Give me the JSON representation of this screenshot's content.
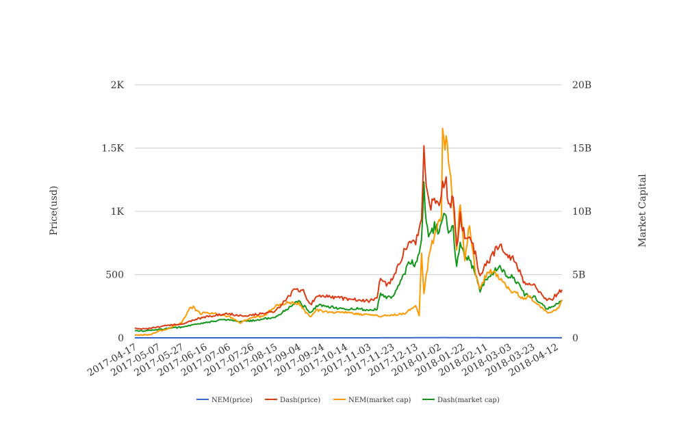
{
  "chart_data": {
    "type": "line",
    "y_left_label": "Price(usd)",
    "y_right_label": "Market Capital",
    "y_left_ticks": [
      "0",
      "500",
      "1K",
      "1.5K",
      "2K"
    ],
    "y_left_range": [
      0,
      2000
    ],
    "y_right_ticks": [
      "0",
      "5B",
      "10B",
      "15B",
      "20B"
    ],
    "y_right_range": [
      0,
      20000000000
    ],
    "x_range": [
      "2017-04-17",
      "2018-04-17"
    ],
    "x_tick_labels": [
      "2017-04-17",
      "2017-05-07",
      "2017-05-27",
      "2017-06-16",
      "2017-07-06",
      "2017-07-26",
      "2017-08-15",
      "2017-09-04",
      "2017-09-24",
      "2017-10-14",
      "2017-11-03",
      "2017-11-23",
      "2017-12-13",
      "2018-01-02",
      "2018-01-22",
      "2018-02-11",
      "2018-03-03",
      "2018-03-23",
      "2018-04-12"
    ],
    "grid": true,
    "legend_position": "bottom",
    "series": [
      {
        "name": "NEM(price)",
        "axis": "left",
        "color": "#3366cc",
        "points": [
          [
            "2017-04-17",
            0.02
          ],
          [
            "2017-06-01",
            0.2
          ],
          [
            "2017-08-01",
            0.2
          ],
          [
            "2017-10-01",
            0.2
          ],
          [
            "2017-12-01",
            0.3
          ],
          [
            "2018-01-05",
            2
          ],
          [
            "2018-01-20",
            1.5
          ],
          [
            "2018-02-15",
            0.5
          ],
          [
            "2018-04-17",
            0.3
          ]
        ]
      },
      {
        "name": "Dash(price)",
        "axis": "left",
        "color": "#dc3912",
        "points": [
          [
            "2017-04-17",
            75
          ],
          [
            "2017-04-27",
            72
          ],
          [
            "2017-05-07",
            85
          ],
          [
            "2017-05-17",
            100
          ],
          [
            "2017-05-27",
            110
          ],
          [
            "2017-06-06",
            140
          ],
          [
            "2017-06-16",
            165
          ],
          [
            "2017-06-26",
            180
          ],
          [
            "2017-07-06",
            190
          ],
          [
            "2017-07-16",
            175
          ],
          [
            "2017-07-26",
            180
          ],
          [
            "2017-08-05",
            195
          ],
          [
            "2017-08-15",
            210
          ],
          [
            "2017-08-25",
            310
          ],
          [
            "2017-09-01",
            390
          ],
          [
            "2017-09-08",
            370
          ],
          [
            "2017-09-14",
            260
          ],
          [
            "2017-09-19",
            320
          ],
          [
            "2017-09-24",
            340
          ],
          [
            "2017-10-04",
            320
          ],
          [
            "2017-10-14",
            310
          ],
          [
            "2017-10-24",
            300
          ],
          [
            "2017-11-03",
            290
          ],
          [
            "2017-11-10",
            310
          ],
          [
            "2017-11-13",
            480
          ],
          [
            "2017-11-18",
            420
          ],
          [
            "2017-11-23",
            460
          ],
          [
            "2017-11-28",
            560
          ],
          [
            "2017-12-03",
            680
          ],
          [
            "2017-12-08",
            790
          ],
          [
            "2017-12-13",
            760
          ],
          [
            "2017-12-18",
            960
          ],
          [
            "2017-12-20",
            1540
          ],
          [
            "2017-12-22",
            1150
          ],
          [
            "2017-12-25",
            1020
          ],
          [
            "2017-12-29",
            1120
          ],
          [
            "2018-01-02",
            1080
          ],
          [
            "2018-01-05",
            1200
          ],
          [
            "2018-01-08",
            1270
          ],
          [
            "2018-01-10",
            1040
          ],
          [
            "2018-01-14",
            1100
          ],
          [
            "2018-01-17",
            700
          ],
          [
            "2018-01-20",
            960
          ],
          [
            "2018-01-24",
            810
          ],
          [
            "2018-01-28",
            800
          ],
          [
            "2018-02-02",
            660
          ],
          [
            "2018-02-06",
            480
          ],
          [
            "2018-02-10",
            590
          ],
          [
            "2018-02-14",
            620
          ],
          [
            "2018-02-19",
            690
          ],
          [
            "2018-02-24",
            720
          ],
          [
            "2018-03-01",
            640
          ],
          [
            "2018-03-06",
            630
          ],
          [
            "2018-03-11",
            540
          ],
          [
            "2018-03-16",
            430
          ],
          [
            "2018-03-20",
            420
          ],
          [
            "2018-03-25",
            410
          ],
          [
            "2018-03-30",
            350
          ],
          [
            "2018-04-04",
            300
          ],
          [
            "2018-04-09",
            310
          ],
          [
            "2018-04-14",
            360
          ],
          [
            "2018-04-17",
            380
          ]
        ]
      },
      {
        "name": "NEM(market cap)",
        "axis": "right",
        "color": "#ff9900",
        "points": [
          [
            "2017-04-17",
            200000000
          ],
          [
            "2017-04-30",
            250000000
          ],
          [
            "2017-05-07",
            500000000
          ],
          [
            "2017-05-17",
            800000000
          ],
          [
            "2017-05-22",
            1000000000
          ],
          [
            "2017-05-27",
            1200000000
          ],
          [
            "2017-06-03",
            2300000000
          ],
          [
            "2017-06-06",
            2400000000
          ],
          [
            "2017-06-12",
            1900000000
          ],
          [
            "2017-06-16",
            2000000000
          ],
          [
            "2017-06-26",
            1900000000
          ],
          [
            "2017-07-06",
            1700000000
          ],
          [
            "2017-07-16",
            1200000000
          ],
          [
            "2017-07-26",
            1600000000
          ],
          [
            "2017-08-05",
            1700000000
          ],
          [
            "2017-08-15",
            2500000000
          ],
          [
            "2017-08-25",
            2800000000
          ],
          [
            "2017-09-04",
            2700000000
          ],
          [
            "2017-09-14",
            1600000000
          ],
          [
            "2017-09-19",
            2200000000
          ],
          [
            "2017-09-24",
            2100000000
          ],
          [
            "2017-10-04",
            2000000000
          ],
          [
            "2017-10-14",
            2000000000
          ],
          [
            "2017-10-24",
            1900000000
          ],
          [
            "2017-11-03",
            1800000000
          ],
          [
            "2017-11-13",
            1700000000
          ],
          [
            "2017-11-23",
            1800000000
          ],
          [
            "2017-12-03",
            1900000000
          ],
          [
            "2017-12-13",
            2500000000
          ],
          [
            "2017-12-16",
            1800000000
          ],
          [
            "2017-12-18",
            6800000000
          ],
          [
            "2017-12-20",
            3600000000
          ],
          [
            "2017-12-25",
            6800000000
          ],
          [
            "2018-01-01",
            9000000000
          ],
          [
            "2018-01-04",
            9500000000
          ],
          [
            "2018-01-05",
            16700000000
          ],
          [
            "2018-01-07",
            14500000000
          ],
          [
            "2018-01-08",
            16700000000
          ],
          [
            "2018-01-11",
            13000000000
          ],
          [
            "2018-01-14",
            11000000000
          ],
          [
            "2018-01-17",
            7000000000
          ],
          [
            "2018-01-20",
            11000000000
          ],
          [
            "2018-01-24",
            6000000000
          ],
          [
            "2018-01-28",
            9000000000
          ],
          [
            "2018-02-02",
            5000000000
          ],
          [
            "2018-02-06",
            3800000000
          ],
          [
            "2018-02-10",
            4800000000
          ],
          [
            "2018-02-15",
            5300000000
          ],
          [
            "2018-02-20",
            4900000000
          ],
          [
            "2018-02-25",
            4500000000
          ],
          [
            "2018-03-03",
            3800000000
          ],
          [
            "2018-03-10",
            3500000000
          ],
          [
            "2018-03-15",
            3000000000
          ],
          [
            "2018-03-20",
            3400000000
          ],
          [
            "2018-03-25",
            2800000000
          ],
          [
            "2018-03-30",
            2400000000
          ],
          [
            "2018-04-04",
            2000000000
          ],
          [
            "2018-04-09",
            2100000000
          ],
          [
            "2018-04-14",
            2300000000
          ],
          [
            "2018-04-17",
            3000000000
          ]
        ]
      },
      {
        "name": "Dash(market cap)",
        "axis": "right",
        "color": "#109618",
        "points": [
          [
            "2017-04-17",
            550000000
          ],
          [
            "2017-04-27",
            550000000
          ],
          [
            "2017-05-07",
            650000000
          ],
          [
            "2017-05-17",
            750000000
          ],
          [
            "2017-05-27",
            850000000
          ],
          [
            "2017-06-06",
            1050000000
          ],
          [
            "2017-06-16",
            1200000000
          ],
          [
            "2017-06-26",
            1350000000
          ],
          [
            "2017-07-06",
            1450000000
          ],
          [
            "2017-07-16",
            1300000000
          ],
          [
            "2017-07-26",
            1350000000
          ],
          [
            "2017-08-05",
            1500000000
          ],
          [
            "2017-08-15",
            1600000000
          ],
          [
            "2017-08-25",
            2300000000
          ],
          [
            "2017-09-04",
            2900000000
          ],
          [
            "2017-09-14",
            2000000000
          ],
          [
            "2017-09-19",
            2500000000
          ],
          [
            "2017-09-24",
            2600000000
          ],
          [
            "2017-10-04",
            2400000000
          ],
          [
            "2017-10-14",
            2300000000
          ],
          [
            "2017-10-24",
            2300000000
          ],
          [
            "2017-11-03",
            2200000000
          ],
          [
            "2017-11-10",
            2300000000
          ],
          [
            "2017-11-13",
            3500000000
          ],
          [
            "2017-11-18",
            3100000000
          ],
          [
            "2017-11-23",
            3300000000
          ],
          [
            "2017-11-28",
            4000000000
          ],
          [
            "2017-12-03",
            5000000000
          ],
          [
            "2017-12-08",
            6100000000
          ],
          [
            "2017-12-13",
            5800000000
          ],
          [
            "2017-12-18",
            7500000000
          ],
          [
            "2017-12-20",
            12200000000
          ],
          [
            "2017-12-22",
            9000000000
          ],
          [
            "2017-12-25",
            8000000000
          ],
          [
            "2017-12-29",
            8800000000
          ],
          [
            "2018-01-02",
            8500000000
          ],
          [
            "2018-01-05",
            9400000000
          ],
          [
            "2018-01-08",
            10000000000
          ],
          [
            "2018-01-10",
            8200000000
          ],
          [
            "2018-01-14",
            8600000000
          ],
          [
            "2018-01-17",
            5600000000
          ],
          [
            "2018-01-20",
            7500000000
          ],
          [
            "2018-01-24",
            6300000000
          ],
          [
            "2018-01-28",
            6200000000
          ],
          [
            "2018-02-02",
            5100000000
          ],
          [
            "2018-02-06",
            3600000000
          ],
          [
            "2018-02-10",
            4500000000
          ],
          [
            "2018-02-14",
            4800000000
          ],
          [
            "2018-02-19",
            5300000000
          ],
          [
            "2018-02-24",
            5600000000
          ],
          [
            "2018-03-01",
            4900000000
          ],
          [
            "2018-03-06",
            4900000000
          ],
          [
            "2018-03-11",
            4200000000
          ],
          [
            "2018-03-16",
            3400000000
          ],
          [
            "2018-03-20",
            3300000000
          ],
          [
            "2018-03-25",
            3200000000
          ],
          [
            "2018-03-30",
            2700000000
          ],
          [
            "2018-04-04",
            2300000000
          ],
          [
            "2018-04-09",
            2400000000
          ],
          [
            "2018-04-14",
            2800000000
          ],
          [
            "2018-04-17",
            3000000000
          ]
        ]
      }
    ]
  }
}
